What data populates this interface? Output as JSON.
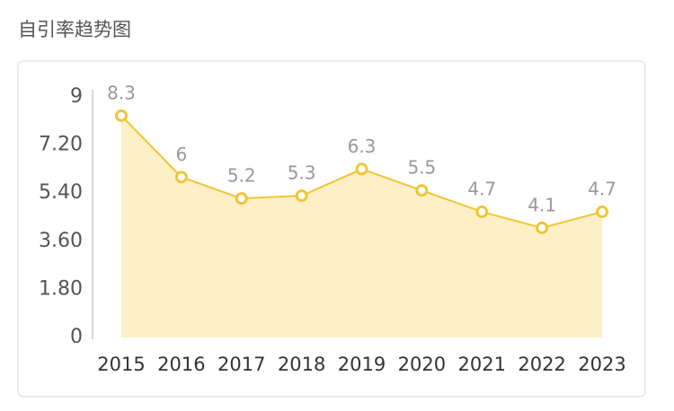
{
  "chart_data": {
    "type": "area",
    "title": "自引率趋势图",
    "categories": [
      "2015",
      "2016",
      "2017",
      "2018",
      "2019",
      "2020",
      "2021",
      "2022",
      "2023"
    ],
    "values": [
      8.3,
      6,
      5.2,
      5.3,
      6.3,
      5.5,
      4.7,
      4.1,
      4.7
    ],
    "color": "#f0c636",
    "fill_color": "#fdf0c6",
    "ylim": [
      0,
      9
    ],
    "yticks": [
      0,
      {
        "value": 1.8,
        "label": "1.80"
      },
      {
        "value": 3.6,
        "label": "3.60"
      },
      {
        "value": 5.4,
        "label": "5.40"
      },
      {
        "value": 7.2,
        "label": "7.20"
      },
      9
    ]
  }
}
